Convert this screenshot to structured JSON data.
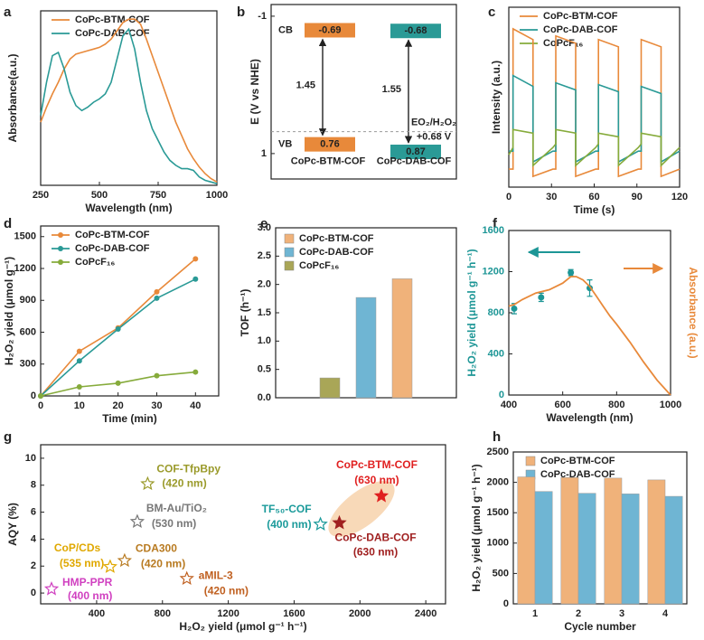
{
  "chart_data": [
    {
      "label": "a",
      "type": "line",
      "xlabel": "Wavelength (nm)",
      "ylabel": "Absorbance(a.u.)",
      "xlim": [
        250,
        1000
      ],
      "xticks": [
        250,
        500,
        750,
        1000
      ],
      "ylim": [
        0,
        1.05
      ],
      "legend": "top-left",
      "x": [
        250,
        275,
        300,
        325,
        350,
        375,
        400,
        425,
        450,
        475,
        500,
        525,
        550,
        575,
        600,
        625,
        650,
        675,
        700,
        725,
        750,
        775,
        800,
        825,
        850,
        875,
        900,
        925,
        950,
        975,
        1000
      ],
      "series": [
        {
          "name": "CoPc-BTM-COF",
          "color": "#e8893a",
          "values": [
            0.38,
            0.47,
            0.55,
            0.62,
            0.7,
            0.76,
            0.79,
            0.8,
            0.81,
            0.82,
            0.83,
            0.85,
            0.88,
            0.93,
            0.98,
            1.0,
            1.0,
            0.97,
            0.88,
            0.78,
            0.68,
            0.58,
            0.48,
            0.38,
            0.3,
            0.22,
            0.16,
            0.11,
            0.07,
            0.04,
            0.02
          ]
        },
        {
          "name": "CoPc-DAB-COF",
          "color": "#2a9a96",
          "values": [
            0.42,
            0.62,
            0.78,
            0.8,
            0.7,
            0.56,
            0.48,
            0.45,
            0.47,
            0.5,
            0.52,
            0.55,
            0.62,
            0.76,
            0.9,
            0.94,
            0.82,
            0.62,
            0.45,
            0.34,
            0.27,
            0.2,
            0.15,
            0.12,
            0.1,
            0.1,
            0.09,
            0.05,
            0.03,
            0.02,
            0.01
          ]
        }
      ]
    },
    {
      "label": "b",
      "type": "band",
      "ylabel": "E (V vs NHE)",
      "ylim": [
        1.37,
        -1.17
      ],
      "yticks": [
        -1,
        1
      ],
      "cb_label": "CB",
      "vb_label": "VB",
      "reference": {
        "value": 0.68,
        "name": "EO₂/H₂O₂",
        "label": "+0.68 V"
      },
      "series": [
        {
          "name": "CoPc-BTM-COF",
          "color": "#e8893a",
          "cb": -0.69,
          "vb": 0.76,
          "gap": 1.45
        },
        {
          "name": "CoPc-DAB-COF",
          "color": "#2a9a96",
          "cb": -0.68,
          "vb": 0.87,
          "gap": 1.55
        }
      ]
    },
    {
      "label": "c",
      "type": "line",
      "xlabel": "Time (s)",
      "ylabel": "Intensity (a.u.)",
      "xlim": [
        0,
        120
      ],
      "xticks": [
        0,
        30,
        60,
        90,
        120
      ],
      "ylim": [
        0,
        1
      ],
      "legend": "top-left",
      "x": [
        0,
        3,
        3,
        17,
        17,
        31,
        33,
        33,
        47,
        47,
        61,
        63,
        63,
        77,
        77,
        91,
        93,
        93,
        107,
        107,
        120
      ],
      "series": [
        {
          "name": "CoPc-BTM-COF",
          "color": "#e8893a",
          "values": [
            0.1,
            0.1,
            0.88,
            0.82,
            0.06,
            0.1,
            0.1,
            0.84,
            0.8,
            0.06,
            0.1,
            0.1,
            0.82,
            0.78,
            0.06,
            0.1,
            0.1,
            0.82,
            0.78,
            0.06,
            0.1
          ]
        },
        {
          "name": "CoPc-DAB-COF",
          "color": "#2a9a96",
          "values": [
            0.2,
            0.2,
            0.62,
            0.56,
            0.14,
            0.2,
            0.2,
            0.58,
            0.54,
            0.14,
            0.2,
            0.2,
            0.57,
            0.53,
            0.14,
            0.2,
            0.2,
            0.56,
            0.52,
            0.14,
            0.2
          ]
        },
        {
          "name": "CoPcF₁₆",
          "color": "#86ab3b",
          "values": [
            0.18,
            0.22,
            0.32,
            0.3,
            0.12,
            0.22,
            0.24,
            0.32,
            0.3,
            0.12,
            0.22,
            0.24,
            0.3,
            0.28,
            0.12,
            0.22,
            0.24,
            0.3,
            0.28,
            0.12,
            0.22
          ]
        }
      ]
    },
    {
      "label": "d",
      "type": "line",
      "markers": true,
      "xlabel": "Time (min)",
      "ylabel": "H₂O₂ yield (μmol g⁻¹)",
      "xlim": [
        0,
        46
      ],
      "xticks": [
        0,
        10,
        20,
        30,
        40
      ],
      "ylim": [
        0,
        1600
      ],
      "yticks": [
        0,
        300,
        600,
        900,
        1200,
        1500
      ],
      "legend": "top-left",
      "x": [
        0,
        10,
        20,
        30,
        40
      ],
      "series": [
        {
          "name": "CoPc-BTM-COF",
          "color": "#e8893a",
          "values": [
            0,
            420,
            640,
            980,
            1290
          ]
        },
        {
          "name": "CoPc-DAB-COF",
          "color": "#2a9a96",
          "values": [
            0,
            330,
            630,
            920,
            1100
          ]
        },
        {
          "name": "CoPcF₁₆",
          "color": "#86ab3b",
          "values": [
            0,
            85,
            120,
            190,
            225
          ]
        }
      ]
    },
    {
      "label": "e",
      "type": "bar",
      "ylabel": "TOF (h⁻¹)",
      "ylim": [
        0,
        3
      ],
      "yticks": [
        {
          "value": 0,
          "label": "0.0"
        },
        0.5,
        {
          "value": 1,
          "label": "1.0"
        },
        1.5,
        {
          "value": 2,
          "label": "2.0"
        },
        2.5,
        {
          "value": 3,
          "label": "3.0"
        }
      ],
      "legend": "top-left",
      "legend_reversed": true,
      "categories": [
        null
      ],
      "series": [
        {
          "name": "CoPcF₁₆",
          "color": "#a9a657",
          "values": [
            0.35
          ]
        },
        {
          "name": "CoPc-DAB-COF",
          "color": "#6fb5d3",
          "values": [
            1.77
          ]
        },
        {
          "name": "CoPc-BTM-COF",
          "color": "#f0b27a",
          "values": [
            2.1
          ]
        }
      ]
    },
    {
      "label": "f",
      "type": "scatter",
      "xlabel": "Wavelength (nm)",
      "ylabel": "H₂O₂ yield (μmol g⁻¹ h⁻¹)",
      "y2label": "Absorbance (a.u.)",
      "ylabel_color": "#1d9696",
      "y2label_color": "#e8893a",
      "xlim": [
        400,
        1000
      ],
      "xticks": [
        400,
        600,
        800,
        1000
      ],
      "ylim": [
        0,
        1600
      ],
      "yticks": [
        0,
        400,
        800,
        1200,
        1600
      ],
      "y2lim": [
        0,
        1
      ],
      "series": [
        {
          "color": "#1d9696",
          "x": [
            420,
            520,
            630,
            700
          ],
          "values": [
            840,
            950,
            1190,
            1040
          ],
          "errors": [
            50,
            40,
            30,
            80
          ]
        },
        {
          "color": "#e8893a",
          "axis": "y2",
          "mode": "line",
          "x": [
            400,
            420,
            450,
            500,
            550,
            600,
            630,
            650,
            675,
            700,
            725,
            750,
            775,
            800,
            850,
            900,
            950,
            1000
          ],
          "values": [
            0.54,
            0.55,
            0.58,
            0.62,
            0.64,
            0.68,
            0.72,
            0.72,
            0.7,
            0.66,
            0.6,
            0.54,
            0.48,
            0.43,
            0.32,
            0.2,
            0.09,
            0.0
          ]
        }
      ]
    },
    {
      "label": "g",
      "type": "scatter",
      "xlabel": "H₂O₂ yield (μmol g⁻¹ h⁻¹)",
      "ylabel": "AQY (%)",
      "xlim": [
        60,
        2520
      ],
      "xticks": [
        400,
        800,
        1200,
        1600,
        2000,
        2400
      ],
      "ylim": [
        -0.8,
        11
      ],
      "yticks": [
        0,
        2,
        4,
        6,
        8,
        10
      ],
      "series": [
        {
          "name": "COF-TfpBpy",
          "sublabel": "(420 nm)",
          "color": "#9a9a2a",
          "marker": "star",
          "x": [
            710
          ],
          "values": [
            8.1
          ]
        },
        {
          "name": "BM-Au/TiO₂",
          "sublabel": "(530 nm)",
          "color": "#777777",
          "marker": "star",
          "x": [
            647
          ],
          "values": [
            5.3
          ]
        },
        {
          "name": "TF₅₀-COF",
          "sublabel": "(400 nm)",
          "color": "#1a9a9a",
          "marker": "star",
          "x": [
            1760
          ],
          "values": [
            5.1
          ]
        },
        {
          "name": "CoPc-BTM-COF",
          "sublabel": "(630 nm)",
          "color": "#e02020",
          "marker": "star-filled",
          "x": [
            2130
          ],
          "values": [
            7.2
          ]
        },
        {
          "name": "CoPc-DAB-COF",
          "sublabel": "(630 nm)",
          "color": "#a02020",
          "marker": "star-filled",
          "x": [
            1875
          ],
          "values": [
            5.2
          ]
        },
        {
          "name": "CoP/CDs",
          "sublabel": "(535 nm)",
          "color": "#e0a800",
          "marker": "star",
          "x": [
            482
          ],
          "values": [
            1.95
          ]
        },
        {
          "name": "CDA300",
          "sublabel": "(420 nm)",
          "color": "#b87a20",
          "marker": "star",
          "x": [
            570
          ],
          "values": [
            2.4
          ]
        },
        {
          "name": "aMIL-3",
          "sublabel": "(420 nm)",
          "color": "#c06020",
          "marker": "star",
          "x": [
            948
          ],
          "values": [
            1.07
          ]
        },
        {
          "name": "HMP-PPR",
          "sublabel": "(400 nm)",
          "color": "#d040c0",
          "marker": "star",
          "x": [
            126
          ],
          "values": [
            0.3
          ]
        }
      ]
    },
    {
      "label": "h",
      "type": "bar",
      "xlabel": "Cycle number",
      "ylabel": "H₂O₂ yield (μmol g⁻¹ h⁻¹)",
      "ylim": [
        0,
        2500
      ],
      "yticks": [
        0,
        500,
        1000,
        1500,
        2000,
        2500
      ],
      "legend": "top-left",
      "categories": [
        "1",
        "2",
        "3",
        "4"
      ],
      "series": [
        {
          "name": "CoPc-BTM-COF",
          "color": "#f0b27a",
          "values": [
            2090,
            2080,
            2070,
            2040
          ]
        },
        {
          "name": "CoPc-DAB-COF",
          "color": "#6fb5d3",
          "values": [
            1850,
            1820,
            1810,
            1770
          ]
        }
      ]
    }
  ]
}
